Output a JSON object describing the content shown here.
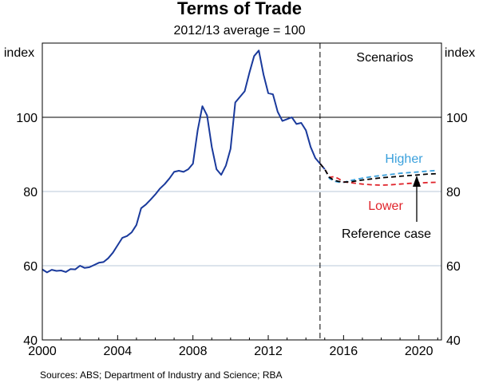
{
  "chart_data": {
    "type": "line",
    "title": "Terms of Trade",
    "subtitle": "2012/13 average = 100",
    "ylabel_left": "index",
    "ylabel_right": "index",
    "xlim": [
      2000,
      2021.2
    ],
    "ylim": [
      40,
      120
    ],
    "yticks": [
      "40",
      "60",
      "80",
      "100"
    ],
    "xticks": [
      "2000",
      "2004",
      "2008",
      "2012",
      "2016",
      "2020"
    ],
    "highlight_y": 100,
    "divider_x": 2014.75,
    "scenarios_label": "Scenarios",
    "series": [
      {
        "name": "",
        "color": "#1a3a9c",
        "dash": false,
        "x": [
          2000.0,
          2000.25,
          2000.5,
          2000.75,
          2001.0,
          2001.25,
          2001.5,
          2001.75,
          2002.0,
          2002.25,
          2002.5,
          2002.75,
          2003.0,
          2003.25,
          2003.5,
          2003.75,
          2004.0,
          2004.25,
          2004.5,
          2004.75,
          2005.0,
          2005.25,
          2005.5,
          2005.75,
          2006.0,
          2006.25,
          2006.5,
          2006.75,
          2007.0,
          2007.25,
          2007.5,
          2007.75,
          2008.0,
          2008.25,
          2008.5,
          2008.75,
          2009.0,
          2009.25,
          2009.5,
          2009.75,
          2010.0,
          2010.25,
          2010.5,
          2010.75,
          2011.0,
          2011.25,
          2011.5,
          2011.75,
          2012.0,
          2012.25,
          2012.5,
          2012.75,
          2013.0,
          2013.25,
          2013.5,
          2013.75,
          2014.0,
          2014.25,
          2014.5,
          2014.75,
          2015.0
        ],
        "values": [
          59.0,
          58.2,
          58.9,
          58.6,
          58.7,
          58.3,
          59.1,
          59.0,
          60.0,
          59.4,
          59.6,
          60.2,
          60.8,
          61.0,
          62.0,
          63.5,
          65.5,
          67.5,
          68.0,
          69.0,
          71.0,
          75.5,
          76.5,
          77.8,
          79.2,
          80.8,
          82.0,
          83.5,
          85.3,
          85.6,
          85.3,
          86.0,
          87.5,
          96.5,
          103.0,
          100.5,
          92.0,
          86.0,
          84.5,
          87.0,
          91.5,
          104.0,
          105.5,
          107.0,
          112.0,
          116.5,
          118.0,
          111.5,
          106.5,
          106.2,
          101.5,
          99.0,
          99.5,
          100.0,
          98.2,
          98.5,
          96.5,
          92.0,
          89.0,
          87.5,
          86.0
        ]
      },
      {
        "name": "Reference case",
        "color": "#000000",
        "dash": true,
        "x": [
          2014.75,
          2015.0,
          2015.25,
          2015.5,
          2015.75,
          2016.0,
          2016.5,
          2017.0,
          2017.5,
          2018.0,
          2018.5,
          2019.0,
          2019.5,
          2020.0,
          2020.5,
          2021.0
        ],
        "values": [
          87.5,
          86.0,
          83.8,
          83.0,
          82.7,
          82.5,
          82.7,
          83.1,
          83.4,
          83.7,
          83.9,
          84.1,
          84.3,
          84.5,
          84.7,
          84.8
        ]
      },
      {
        "name": "Higher",
        "color": "#3aa0dc",
        "dash": true,
        "x": [
          2014.75,
          2015.0,
          2015.25,
          2015.5,
          2015.75,
          2016.0,
          2016.5,
          2017.0,
          2017.5,
          2018.0,
          2018.5,
          2019.0,
          2019.5,
          2020.0,
          2020.5,
          2021.0
        ],
        "values": [
          87.5,
          86.0,
          83.5,
          82.8,
          82.5,
          82.5,
          83.1,
          83.6,
          84.0,
          84.3,
          84.6,
          84.9,
          85.1,
          85.3,
          85.5,
          85.7
        ]
      },
      {
        "name": "Lower",
        "color": "#e0242b",
        "dash": true,
        "x": [
          2014.75,
          2015.0,
          2015.25,
          2015.5,
          2015.75,
          2016.0,
          2016.5,
          2017.0,
          2017.5,
          2018.0,
          2018.5,
          2019.0,
          2019.5,
          2020.0,
          2020.5,
          2021.0
        ],
        "values": [
          87.5,
          86.0,
          83.8,
          84.0,
          83.4,
          82.6,
          82.3,
          82.0,
          81.8,
          81.7,
          81.8,
          82.0,
          82.2,
          82.3,
          82.4,
          82.5
        ]
      }
    ],
    "annotations": {
      "higher": "Higher",
      "lower": "Lower",
      "reference": "Reference case"
    },
    "source": "Sources:  ABS; Department of Industry and Science; RBA"
  }
}
